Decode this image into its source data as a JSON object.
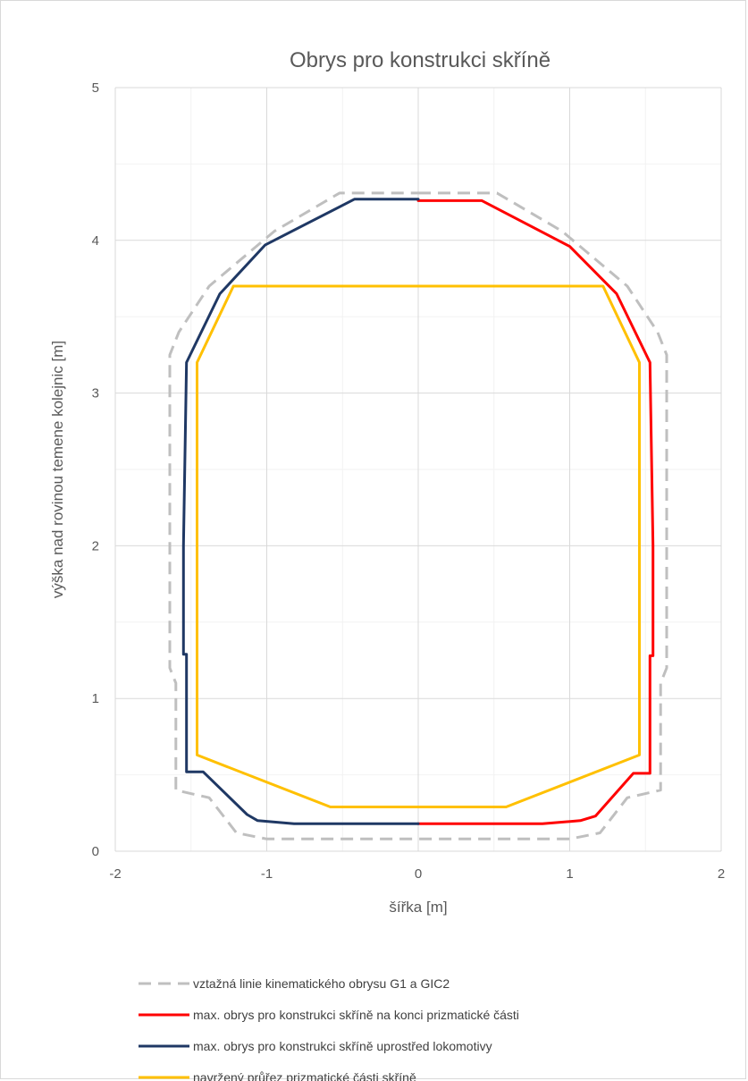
{
  "chart_data": {
    "type": "line",
    "title": "Obrys pro konstrukci skříně",
    "xlabel": "šířka [m]",
    "ylabel": "výška nad rovinou temene kolejnic [m]",
    "xlim": [
      -2,
      2
    ],
    "ylim": [
      0,
      5
    ],
    "xticks": [
      -2,
      -1,
      0,
      1,
      2
    ],
    "yticks": [
      0,
      1,
      2,
      3,
      4,
      5
    ],
    "grid": true,
    "legend_position": "bottom",
    "series": [
      {
        "name": "vztažná linie kinematického obrysu G1 a GIC2",
        "color": "#bfbfbf",
        "dash": true,
        "x": [
          0,
          0.52,
          0.95,
          1.38,
          1.58,
          1.64,
          1.64,
          1.6,
          1.6,
          1.38,
          1.2,
          1.0,
          0.3,
          0,
          -0.3,
          -1.0,
          -1.2,
          -1.38,
          -1.6,
          -1.6,
          -1.64,
          -1.64,
          -1.58,
          -1.38,
          -0.95,
          -0.52,
          0
        ],
        "y": [
          4.31,
          4.31,
          4.06,
          3.7,
          3.4,
          3.25,
          1.2,
          1.1,
          0.4,
          0.35,
          0.12,
          0.08,
          0.08,
          0.08,
          0.08,
          0.08,
          0.12,
          0.35,
          0.4,
          1.1,
          1.2,
          3.25,
          3.4,
          3.7,
          4.06,
          4.31,
          4.31
        ]
      },
      {
        "name": "max. obrys pro konstrukci skříně na konci prizmatické části",
        "color": "#ff0000",
        "dash": false,
        "x": [
          0,
          0.42,
          1.0,
          1.31,
          1.53,
          1.55,
          1.55,
          1.53,
          1.53,
          1.42,
          1.17,
          1.07,
          0.82,
          0
        ],
        "y": [
          4.26,
          4.26,
          3.96,
          3.65,
          3.2,
          2.0,
          1.28,
          1.28,
          0.51,
          0.51,
          0.23,
          0.2,
          0.18,
          0.18
        ]
      },
      {
        "name": "max. obrys pro konstrukci skříně uprostřed lokomotivy",
        "color": "#1f3864",
        "dash": false,
        "x": [
          0,
          -0.42,
          -1.01,
          -1.31,
          -1.53,
          -1.55,
          -1.55,
          -1.53,
          -1.53,
          -1.42,
          -1.13,
          -1.06,
          -0.82,
          0
        ],
        "y": [
          4.27,
          4.27,
          3.97,
          3.65,
          3.2,
          2.0,
          1.29,
          1.29,
          0.52,
          0.52,
          0.24,
          0.2,
          0.18,
          0.18
        ]
      },
      {
        "name": "navržený průřez prizmatické části skříně",
        "color": "#ffc000",
        "dash": false,
        "x": [
          -1.22,
          1.22,
          1.46,
          1.46,
          0.58,
          -0.58,
          -1.46,
          -1.46,
          -1.22
        ],
        "y": [
          3.7,
          3.7,
          3.2,
          0.63,
          0.29,
          0.29,
          0.63,
          3.2,
          3.7
        ]
      }
    ]
  }
}
